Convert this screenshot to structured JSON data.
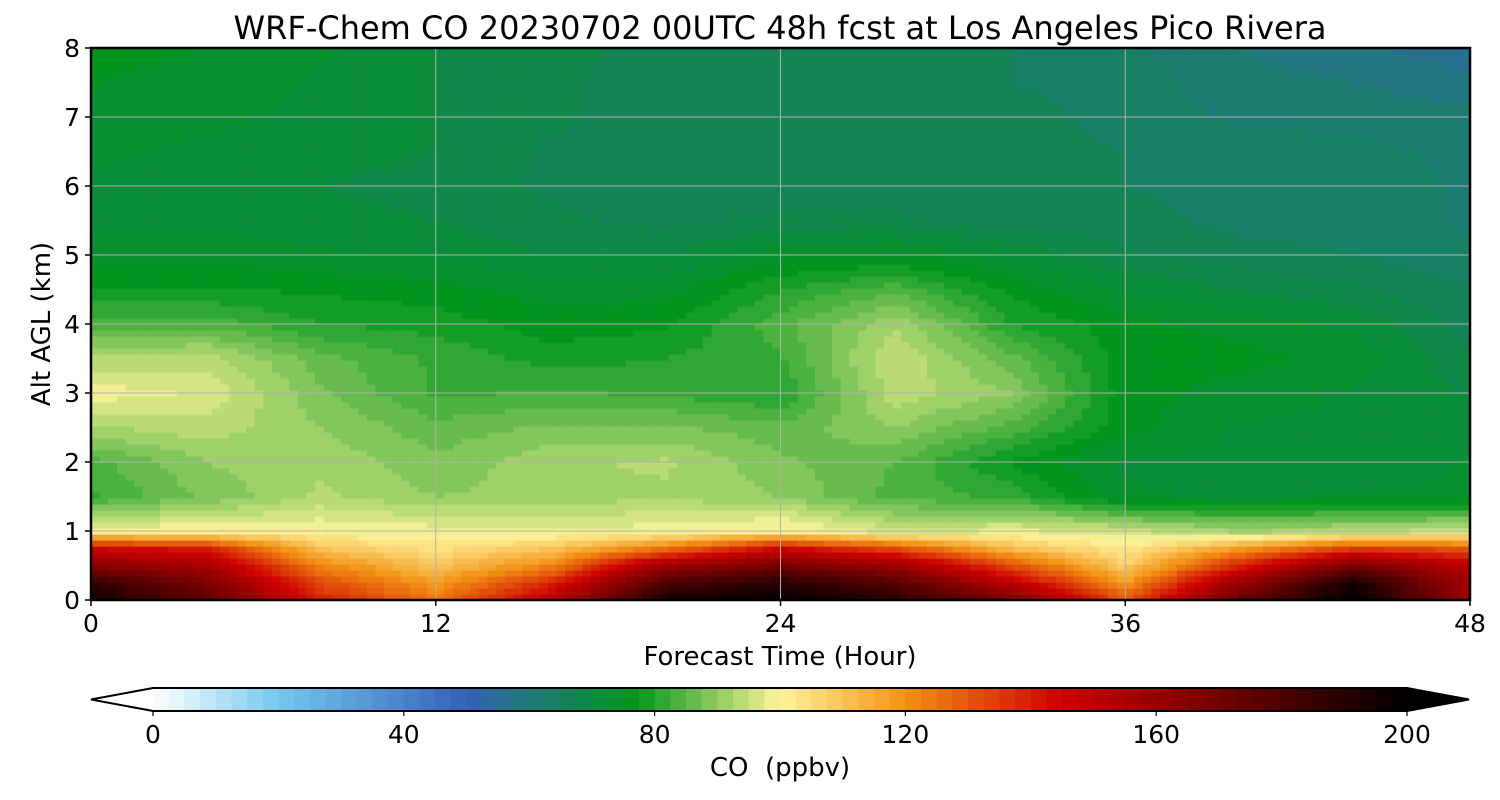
{
  "chart_data": {
    "type": "heatmap",
    "title": "WRF-Chem CO  20230702 00UTC 48h fcst at Los Angeles Pico Rivera",
    "xlabel": "Forecast Time (Hour)",
    "ylabel": "Alt AGL (km)",
    "xlim": [
      0,
      48
    ],
    "ylim": [
      0,
      8
    ],
    "x_ticks": [
      0,
      12,
      24,
      36,
      48
    ],
    "y_ticks": [
      0,
      1,
      2,
      3,
      4,
      5,
      6,
      7,
      8
    ],
    "grid": true,
    "x": [
      0,
      4,
      8,
      12,
      16,
      20,
      24,
      28,
      32,
      36,
      40,
      44,
      48
    ],
    "y": [
      0,
      0.25,
      0.5,
      0.75,
      1,
      1.5,
      2,
      2.5,
      3,
      3.5,
      4,
      4.5,
      5,
      5.5,
      6,
      6.5,
      7,
      7.5,
      8
    ],
    "z": [
      [
        195,
        175,
        140,
        125,
        150,
        195,
        200,
        190,
        170,
        130,
        175,
        200,
        160
      ],
      [
        188,
        168,
        132,
        118,
        138,
        180,
        190,
        178,
        150,
        118,
        160,
        195,
        155
      ],
      [
        165,
        155,
        122,
        110,
        122,
        160,
        170,
        160,
        132,
        108,
        140,
        170,
        150
      ],
      [
        145,
        140,
        110,
        104,
        110,
        125,
        145,
        132,
        112,
        102,
        118,
        135,
        130
      ],
      [
        100,
        100,
        100,
        99,
        98,
        99,
        102,
        96,
        98,
        96,
        92,
        94,
        96
      ],
      [
        82,
        88,
        93,
        90,
        91,
        92,
        90,
        84,
        82,
        73,
        72,
        73,
        73
      ],
      [
        84,
        90,
        92,
        88,
        92,
        93,
        88,
        85,
        77,
        72,
        72,
        70,
        73
      ],
      [
        92,
        94,
        90,
        86,
        88,
        88,
        86,
        90,
        84,
        76,
        72,
        72,
        70
      ],
      [
        99,
        97,
        88,
        82,
        83,
        82,
        80,
        94,
        90,
        76,
        74,
        72,
        70
      ],
      [
        93,
        94,
        86,
        82,
        79,
        80,
        82,
        95,
        86,
        76,
        76,
        74,
        68
      ],
      [
        84,
        84,
        80,
        79,
        76,
        77,
        84,
        92,
        80,
        76,
        74,
        72,
        66
      ],
      [
        78,
        78,
        77,
        76,
        74,
        74,
        80,
        84,
        77,
        72,
        70,
        68,
        65
      ],
      [
        74,
        74,
        73,
        72,
        70,
        70,
        74,
        75,
        72,
        68,
        66,
        65,
        63
      ],
      [
        72,
        72,
        71,
        70,
        68,
        67,
        68,
        68,
        66,
        66,
        64,
        64,
        62
      ],
      [
        72,
        71,
        70,
        69,
        67,
        66,
        66,
        66,
        66,
        65,
        64,
        64,
        62
      ],
      [
        73,
        72,
        71,
        70,
        67,
        66,
        66,
        66,
        66,
        65,
        64,
        63,
        62
      ],
      [
        74,
        73,
        72,
        70,
        68,
        66,
        66,
        66,
        66,
        64,
        62,
        62,
        61
      ],
      [
        75,
        74,
        72,
        70,
        68,
        66,
        66,
        66,
        65,
        64,
        61,
        60,
        58
      ],
      [
        76,
        75,
        73,
        70,
        69,
        66,
        66,
        66,
        65,
        63,
        60,
        58,
        56
      ]
    ],
    "colorbar": {
      "label": "CO  (ppbv)",
      "min": 0,
      "max": 200,
      "ticks": [
        0,
        40,
        80,
        120,
        160,
        200
      ],
      "extend": "both",
      "stops": [
        {
          "v": 0,
          "c": "#ffffff"
        },
        {
          "v": 20,
          "c": "#74c7ee"
        },
        {
          "v": 50,
          "c": "#3560b8"
        },
        {
          "v": 60,
          "c": "#1f7a78"
        },
        {
          "v": 77,
          "c": "#00961c"
        },
        {
          "v": 95,
          "c": "#c8e07c"
        },
        {
          "v": 100,
          "c": "#fff59c"
        },
        {
          "v": 120,
          "c": "#f39114"
        },
        {
          "v": 145,
          "c": "#cc0000"
        },
        {
          "v": 175,
          "c": "#600000"
        },
        {
          "v": 200,
          "c": "#000000"
        }
      ]
    }
  }
}
